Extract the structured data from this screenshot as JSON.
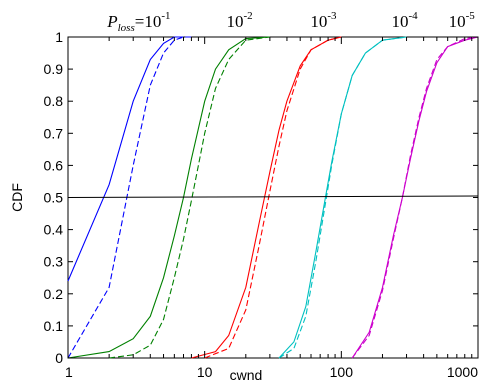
{
  "chart_data": {
    "type": "line",
    "xlabel": "cwnd",
    "ylabel": "CDF",
    "xscale": "log",
    "xlim": [
      1,
      1000
    ],
    "ylim": [
      0,
      1
    ],
    "xticks": [
      {
        "value": 1,
        "label": "1"
      },
      {
        "value": 10,
        "label": "10"
      },
      {
        "value": 100,
        "label": "100"
      },
      {
        "value": 1000,
        "label": "1000"
      }
    ],
    "yticks": [
      {
        "value": 0,
        "label": "0"
      },
      {
        "value": 0.1,
        "label": "0.1"
      },
      {
        "value": 0.2,
        "label": "0.2"
      },
      {
        "value": 0.3,
        "label": "0.3"
      },
      {
        "value": 0.4,
        "label": "0.4"
      },
      {
        "value": 0.5,
        "label": "0.5"
      },
      {
        "value": 0.6,
        "label": "0.6"
      },
      {
        "value": 0.7,
        "label": "0.7"
      },
      {
        "value": 0.8,
        "label": "0.8"
      },
      {
        "value": 0.9,
        "label": "0.9"
      },
      {
        "value": 1,
        "label": "1"
      }
    ],
    "grid": false,
    "annotations": [
      {
        "prefix": "P",
        "subscript": "loss",
        "mid": "=10",
        "sup": "-1",
        "x": 3.3
      },
      {
        "prefix": "",
        "subscript": "",
        "mid": "10",
        "sup": "-2",
        "x": 18
      },
      {
        "prefix": "",
        "subscript": "",
        "mid": "10",
        "sup": "-3",
        "x": 74
      },
      {
        "prefix": "",
        "subscript": "",
        "mid": "10",
        "sup": "-4",
        "x": 290
      },
      {
        "prefix": "",
        "subscript": "",
        "mid": "10",
        "sup": "-5",
        "x": 760
      }
    ],
    "hline": {
      "y": 0.5,
      "color": "#000000"
    },
    "series": [
      {
        "color": "#0000ff",
        "dash": "solid",
        "x": [
          1,
          2,
          3,
          4,
          5,
          6,
          7
        ],
        "y": [
          0.24,
          0.54,
          0.8,
          0.93,
          0.98,
          1.0,
          1.0
        ]
      },
      {
        "color": "#0000ff",
        "dash": "dashed",
        "x": [
          1,
          2,
          3,
          4,
          5,
          6,
          7,
          8
        ],
        "y": [
          0.0,
          0.22,
          0.6,
          0.85,
          0.95,
          0.99,
          1.0,
          1.0
        ]
      },
      {
        "color": "#008000",
        "dash": "solid",
        "x": [
          1,
          2,
          3,
          4,
          5,
          6,
          7,
          8,
          10,
          12,
          15,
          20,
          30
        ],
        "y": [
          0.0,
          0.02,
          0.06,
          0.13,
          0.25,
          0.38,
          0.5,
          0.62,
          0.8,
          0.9,
          0.96,
          0.995,
          1.0
        ]
      },
      {
        "color": "#008000",
        "dash": "dashed",
        "x": [
          2,
          3,
          4,
          5,
          6,
          7,
          8,
          9,
          10,
          12,
          15,
          20,
          30
        ],
        "y": [
          0.0,
          0.01,
          0.04,
          0.12,
          0.25,
          0.37,
          0.49,
          0.6,
          0.7,
          0.84,
          0.93,
          0.99,
          1.0
        ]
      },
      {
        "color": "#ff0000",
        "dash": "solid",
        "x": [
          8,
          12,
          15,
          20,
          25,
          30,
          35,
          40,
          50,
          60,
          80,
          100
        ],
        "y": [
          0.0,
          0.02,
          0.07,
          0.22,
          0.42,
          0.58,
          0.71,
          0.8,
          0.91,
          0.96,
          0.99,
          1.0
        ]
      },
      {
        "color": "#ff0000",
        "dash": "dashed",
        "x": [
          10,
          15,
          20,
          25,
          30,
          35,
          40,
          50,
          60,
          80,
          100
        ],
        "y": [
          0.0,
          0.03,
          0.15,
          0.35,
          0.52,
          0.66,
          0.77,
          0.9,
          0.96,
          0.99,
          1.0
        ]
      },
      {
        "color": "#00c0c0",
        "dash": "solid",
        "x": [
          35,
          45,
          55,
          65,
          75,
          85,
          100,
          120,
          150,
          200,
          300
        ],
        "y": [
          0.0,
          0.05,
          0.16,
          0.33,
          0.48,
          0.61,
          0.76,
          0.88,
          0.95,
          0.99,
          1.0
        ]
      },
      {
        "color": "#00c0c0",
        "dash": "dashed",
        "x": [
          35,
          45,
          55,
          65,
          75,
          85,
          100,
          120,
          150,
          200,
          300
        ],
        "y": [
          0.0,
          0.03,
          0.13,
          0.3,
          0.46,
          0.6,
          0.76,
          0.88,
          0.95,
          0.99,
          1.0
        ]
      },
      {
        "color": "#cc00cc",
        "dash": "solid",
        "x": [
          120,
          160,
          200,
          240,
          280,
          320,
          370,
          420,
          500,
          600,
          800,
          1000
        ],
        "y": [
          0.0,
          0.08,
          0.22,
          0.38,
          0.5,
          0.62,
          0.74,
          0.83,
          0.92,
          0.97,
          0.99,
          1.0
        ]
      },
      {
        "color": "#cc00cc",
        "dash": "dashed",
        "x": [
          120,
          160,
          200,
          240,
          280,
          320,
          370,
          420,
          500,
          600,
          800,
          1000
        ],
        "y": [
          0.0,
          0.07,
          0.21,
          0.37,
          0.5,
          0.63,
          0.75,
          0.84,
          0.93,
          0.97,
          0.995,
          1.0
        ]
      }
    ]
  }
}
